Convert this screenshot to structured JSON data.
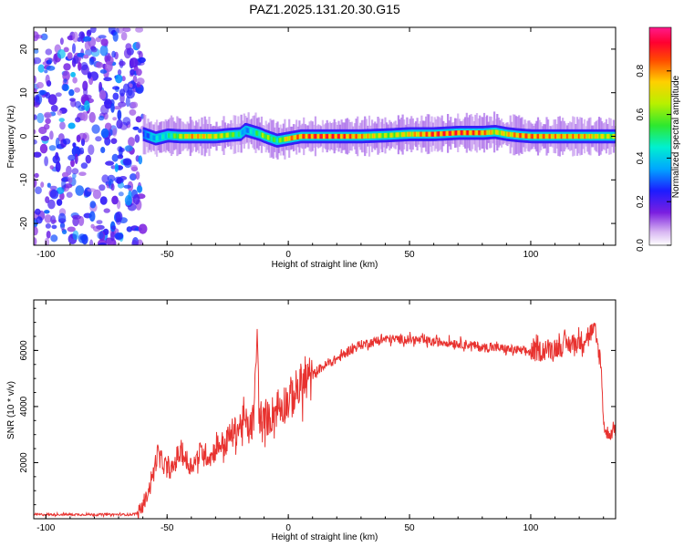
{
  "figure": {
    "title": "PAZ1.2025.131.20.30.G15"
  },
  "chart_data": [
    {
      "type": "heatmap",
      "xlabel": "Height of straight line (km)",
      "ylabel": "Frequency (Hz)",
      "xlim": [
        -105,
        135
      ],
      "ylim": [
        -25,
        25
      ],
      "xticks": [
        -100,
        -50,
        0,
        50,
        100
      ],
      "yticks": [
        -20,
        -10,
        0,
        10,
        20
      ],
      "colorbar": {
        "label": "Normalized spectral amplitude",
        "range": [
          0,
          1
        ],
        "ticks": [
          0.0,
          0.2,
          0.4,
          0.6,
          0.8
        ],
        "colormap": "white-purple-blue-cyan-green-yellow-red-magenta"
      },
      "noise_region": {
        "x": [
          -105,
          -60
        ],
        "y": [
          -25,
          25
        ],
        "amplitude": [
          0.1,
          0.3
        ]
      },
      "ridge": {
        "x": [
          -60,
          -55,
          -50,
          -45,
          -40,
          -35,
          -30,
          -25,
          -20,
          -18,
          -15,
          -12,
          -10,
          -5,
          0,
          5,
          10,
          20,
          30,
          40,
          50,
          60,
          70,
          80,
          85,
          90,
          95,
          100,
          110,
          120,
          130,
          135
        ],
        "frequency": [
          0.5,
          -0.5,
          0.2,
          0.0,
          0.0,
          0.0,
          0.0,
          0.3,
          0.5,
          1.5,
          1.0,
          0.5,
          0.0,
          -1.0,
          -0.5,
          0.0,
          0.0,
          0.0,
          0.0,
          0.2,
          0.5,
          0.5,
          0.8,
          0.8,
          1.0,
          0.5,
          0.2,
          0.0,
          0.0,
          0.0,
          0.0,
          0.0
        ],
        "amplitude": [
          0.3,
          0.45,
          0.5,
          0.7,
          0.85,
          0.8,
          0.75,
          0.7,
          0.5,
          0.35,
          0.5,
          0.6,
          0.7,
          0.55,
          0.85,
          0.9,
          0.95,
          0.95,
          0.85,
          0.7,
          0.8,
          0.95,
          0.95,
          0.9,
          0.75,
          0.8,
          0.9,
          0.9,
          0.85,
          0.85,
          0.75,
          0.7
        ]
      }
    },
    {
      "type": "line",
      "xlabel": "Height of straight line (km)",
      "ylabel": "SNR (10 * v/v)",
      "xlim": [
        -105,
        135
      ],
      "ylim": [
        0,
        7800
      ],
      "xticks": [
        -100,
        -50,
        0,
        50,
        100
      ],
      "yticks": [
        2000,
        4000,
        6000
      ],
      "color": "#e8322f",
      "series": [
        {
          "x": [
            -105,
            -100,
            -90,
            -80,
            -70,
            -65,
            -62,
            -60,
            -58,
            -56,
            -54,
            -52,
            -50,
            -48,
            -46,
            -44,
            -42,
            -40,
            -38,
            -36,
            -34,
            -32,
            -30,
            -28,
            -26,
            -24,
            -22,
            -20,
            -18,
            -16,
            -14,
            -13,
            -12,
            -11,
            -10,
            -8,
            -6,
            -4,
            -2,
            0,
            2,
            4,
            6,
            8,
            10,
            12,
            14,
            16,
            18,
            20,
            22,
            25,
            30,
            35,
            40,
            45,
            50,
            55,
            60,
            65,
            70,
            75,
            80,
            85,
            90,
            95,
            100,
            105,
            110,
            115,
            120,
            122,
            124,
            126,
            128,
            129,
            130,
            131,
            132,
            133,
            134,
            135
          ],
          "y": [
            150,
            150,
            150,
            150,
            150,
            150,
            200,
            450,
            900,
            1500,
            2300,
            2000,
            1800,
            1700,
            2200,
            2400,
            2000,
            1900,
            2100,
            2400,
            2300,
            2200,
            2500,
            2700,
            2600,
            3000,
            3100,
            3300,
            3500,
            3100,
            3700,
            6800,
            3700,
            3300,
            3500,
            3600,
            3800,
            4000,
            4100,
            4200,
            4400,
            4600,
            4800,
            4900,
            5100,
            5300,
            5400,
            5500,
            5600,
            5700,
            5800,
            6000,
            6200,
            6300,
            6400,
            6400,
            6400,
            6350,
            6300,
            6300,
            6250,
            6200,
            6100,
            6100,
            6050,
            6000,
            5950,
            6000,
            6100,
            6200,
            6300,
            6400,
            6600,
            6700,
            6000,
            5500,
            3500,
            3000,
            3100,
            3000,
            3200,
            3300
          ]
        }
      ]
    }
  ]
}
